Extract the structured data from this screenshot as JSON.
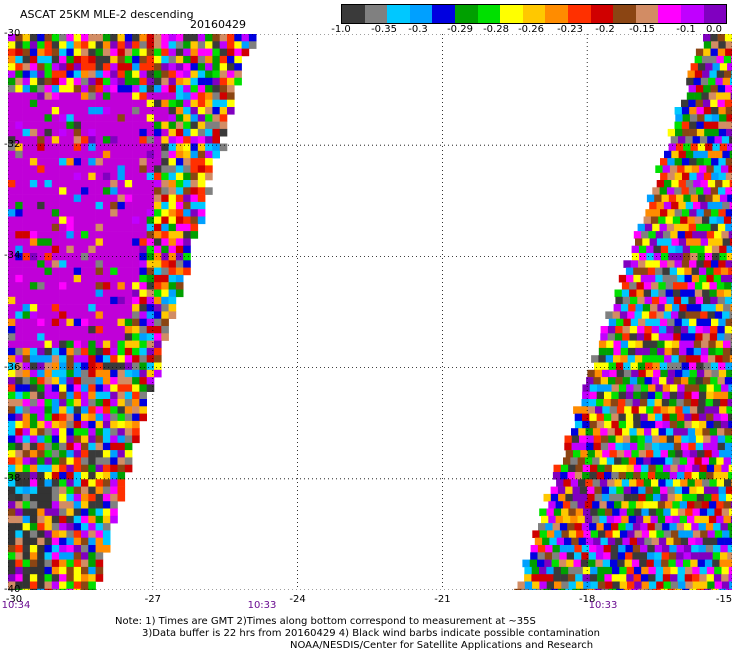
{
  "header": {
    "title": "ASCAT 25KM MLE-2 descending",
    "date": "20160429"
  },
  "colorbar": {
    "colors": [
      "#3a3a3a",
      "#808080",
      "#00c8ff",
      "#00a0ff",
      "#0000e0",
      "#00a000",
      "#00e000",
      "#ffff00",
      "#ffc800",
      "#ff8c00",
      "#ff3000",
      "#d00000",
      "#8b4513",
      "#d28c64",
      "#ff00ff",
      "#c000ff",
      "#8000c0"
    ],
    "labels": [
      "-1.0",
      "-0.35",
      "-0.3",
      "-0.29",
      "-0.28",
      "-0.26",
      "-0.23",
      "-0.2",
      "-0.15",
      "-0.1",
      "0.0"
    ]
  },
  "map": {
    "lat_labels": [
      "-30",
      "-32",
      "-34",
      "-36",
      "-38",
      "-40"
    ],
    "lon_labels": [
      "-30",
      "-27",
      "-24",
      "-21",
      "-18",
      "-15"
    ],
    "time_labels": [
      "10:34",
      "10:33",
      "10:33"
    ],
    "lon_range": [
      -30,
      -15
    ],
    "lat_range": [
      -30,
      -40
    ],
    "gridlines": true,
    "swaths": [
      {
        "name": "west",
        "lon_edge_top": -25.0,
        "lon_edge_bottom": -28.3,
        "side": "left"
      },
      {
        "name": "east",
        "lon_edge_top": -15.6,
        "lon_edge_bottom": -19.5,
        "side": "right"
      }
    ]
  },
  "notes": {
    "line1": "Note: 1) Times are GMT 2)Times along bottom correspond to measurement at ~35S",
    "line2": "3)Data buffer is 22 hrs from 20160429 4) Black wind barbs indicate possible contamination",
    "line3": "NOAA/NESDIS/Center for Satellite Applications and Research"
  }
}
